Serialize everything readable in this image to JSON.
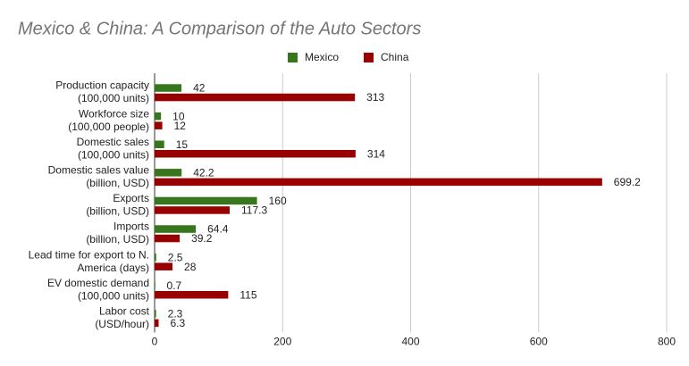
{
  "chart_data": {
    "type": "hbar",
    "title": "Mexico & China: A Comparison of the Auto Sectors",
    "categories": [
      [
        "Production capacity",
        "(100,000 units)"
      ],
      [
        "Workforce size",
        "(100,000 people)"
      ],
      [
        "Domestic sales",
        "(100,000 units)"
      ],
      [
        "Domestic sales value",
        "(billion, USD)"
      ],
      [
        "Exports",
        "(billion, USD)"
      ],
      [
        "Imports",
        "(billion, USD)"
      ],
      [
        "Lead time for export to N.",
        "America (days)"
      ],
      [
        "EV domestic demand",
        "(100,000 units)"
      ],
      [
        "Labor cost",
        "(USD/hour)"
      ]
    ],
    "series": [
      {
        "name": "Mexico",
        "color": "#38761d",
        "values": [
          42,
          10,
          15,
          42.2,
          160,
          64.4,
          2.5,
          0.7,
          2.3
        ]
      },
      {
        "name": "China",
        "color": "#990000",
        "values": [
          313,
          12,
          314,
          699.2,
          117.3,
          39.2,
          28,
          115,
          6.3
        ]
      }
    ],
    "xlim": [
      0,
      800
    ],
    "xticks": [
      0,
      200,
      400,
      600,
      800
    ],
    "grid": true,
    "legend": "top"
  }
}
